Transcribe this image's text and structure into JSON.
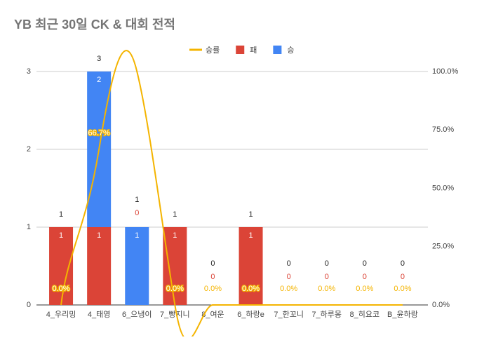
{
  "chart_data": {
    "type": "combo",
    "title": "YB 최근 30일 CK & 대회 전적",
    "categories": [
      "4_우리밍",
      "4_태영",
      "6_으냉이",
      "7_빵지니",
      "8_여운",
      "6_하랑e",
      "7_한꼬니",
      "7_하루몽",
      "8_히요코",
      "B_윤하랑"
    ],
    "series": [
      {
        "name": "승률",
        "type": "line",
        "axis": "y2",
        "color": "#f4b400",
        "values": [
          0,
          66.7,
          100,
          0,
          0,
          0,
          0,
          0,
          0,
          0
        ],
        "value_labels": [
          "0.0%",
          "66.7%",
          null,
          "0.0%",
          "0.0%",
          "0.0%",
          "0.0%",
          "0.0%",
          "0.0%",
          "0.0%"
        ]
      },
      {
        "name": "패",
        "type": "bar",
        "color": "#db4437",
        "values": [
          1,
          1,
          0,
          1,
          0,
          1,
          0,
          0,
          0,
          0
        ]
      },
      {
        "name": "승",
        "type": "bar",
        "color": "#4285f4",
        "values": [
          0,
          2,
          1,
          0,
          0,
          0,
          0,
          0,
          0,
          0
        ]
      }
    ],
    "totals": [
      1,
      3,
      1,
      1,
      0,
      1,
      0,
      0,
      0,
      0
    ],
    "ylim": [
      0,
      3
    ],
    "yticks": [
      0,
      1,
      2,
      3
    ],
    "y2lim": [
      0,
      100
    ],
    "y2ticks": [
      {
        "value": 0,
        "label": "0.0%"
      },
      {
        "value": 25,
        "label": "25.0%"
      },
      {
        "value": 50,
        "label": "50.0%"
      },
      {
        "value": 75,
        "label": "75.0%"
      },
      {
        "value": 100,
        "label": "100.0%"
      }
    ],
    "grid": true,
    "legend": "top"
  }
}
